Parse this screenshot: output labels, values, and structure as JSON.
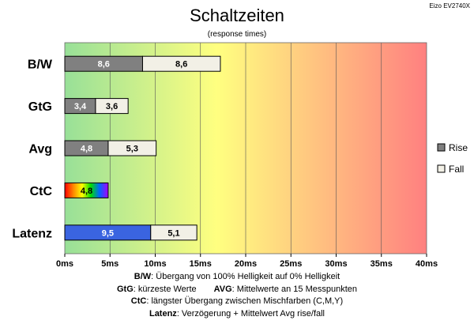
{
  "chart_data": {
    "type": "bar",
    "orientation": "horizontal",
    "stacked": true,
    "title": "Schaltzeiten",
    "subtitle": "(response times)",
    "model": "Eizo EV2740X",
    "categories": [
      "B/W",
      "GtG",
      "Avg",
      "CtC",
      "Latenz"
    ],
    "series": [
      {
        "name": "Rise",
        "values": [
          8.6,
          3.4,
          4.8,
          4.8,
          9.5
        ],
        "labels": [
          "8,6",
          "3,4",
          "4,8",
          "4,8",
          "9,5"
        ],
        "color": "#808080"
      },
      {
        "name": "Fall",
        "values": [
          8.6,
          3.6,
          5.3,
          null,
          5.1
        ],
        "labels": [
          "8,6",
          "3,6",
          "5,3",
          "",
          "5,1"
        ],
        "color": "#f2f0e6"
      }
    ],
    "special_colors": {
      "CtC": "rainbow",
      "Latenz": "#3a64e0"
    },
    "xlim": [
      0,
      40
    ],
    "xticks": [
      0,
      5,
      10,
      15,
      20,
      25,
      30,
      35,
      40
    ],
    "xtick_labels": [
      "0ms",
      "5ms",
      "10ms",
      "15ms",
      "20ms",
      "25ms",
      "30ms",
      "35ms",
      "40ms"
    ],
    "grid": true,
    "legend_position": "right",
    "background_gradient": [
      "#98e098",
      "#ffff80",
      "#ff8080"
    ]
  },
  "notes": {
    "bw_label": "B/W",
    "bw_text": ": Übergang von 100% Helligkeit auf 0% Helligkeit",
    "gtg_label": "GtG",
    "gtg_text": ": kürzeste Werte",
    "avg_label": "AVG",
    "avg_text": ": Mittelwerte an 15 Messpunkten",
    "ctc_label": "CtC",
    "ctc_text": ": längster Übergang zwischen Mischfarben (C,M,Y)",
    "lat_label": "Latenz",
    "lat_text": ": Verzögerung + Mittelwert Avg rise/fall"
  }
}
